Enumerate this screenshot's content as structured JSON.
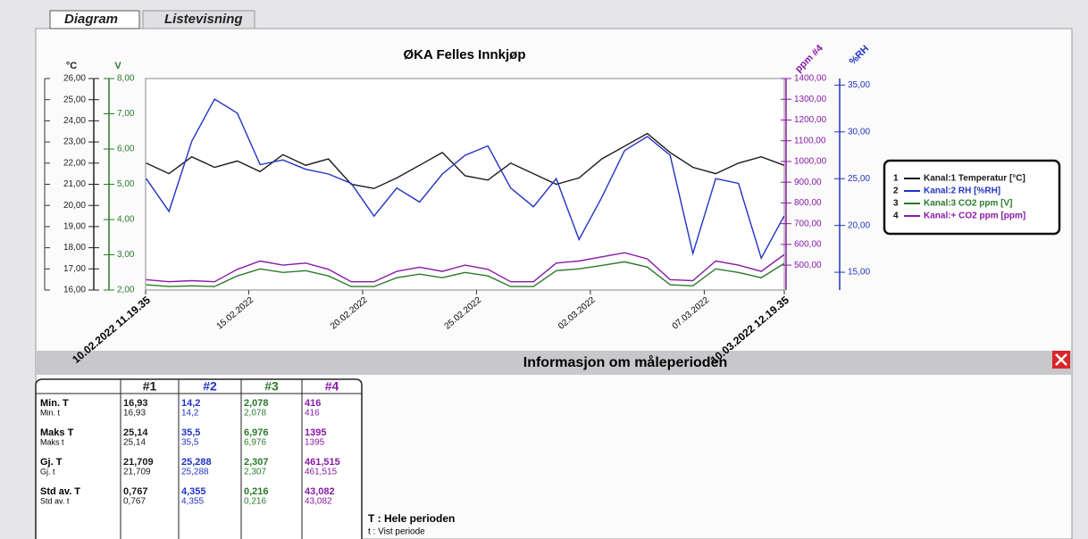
{
  "tabs": [
    "Diagram",
    "Listevisning"
  ],
  "chart_data": {
    "type": "line",
    "title": "ØKA Felles Innkjøp",
    "ylabel": "°C",
    "y2label": "V",
    "y3label": "ppm #4",
    "y4label": "%RH",
    "x": [
      "2022-02-10T12:00",
      "2022-02-11T12:00",
      "2022-02-12T12:00",
      "2022-02-13T12:00",
      "2022-02-14T12:00",
      "2022-02-15T12:00",
      "2022-02-16T12:00",
      "2022-02-17T12:00",
      "2022-02-18T12:00",
      "2022-02-19T12:00",
      "2022-02-20T12:00",
      "2022-02-21T12:00",
      "2022-02-22T12:00",
      "2022-02-23T12:00",
      "2022-02-24T12:00",
      "2022-02-25T12:00",
      "2022-02-26T12:00",
      "2022-02-27T12:00",
      "2022-02-28T12:00",
      "2022-03-01T12:00",
      "2022-03-02T12:00",
      "2022-03-03T12:00",
      "2022-03-04T12:00",
      "2022-03-05T12:00",
      "2022-03-06T12:00",
      "2022-03-07T12:00",
      "2022-03-08T12:00",
      "2022-03-09T12:00",
      "2022-03-10T12:00"
    ],
    "xlim": [
      "2022-02-10T11:19:35",
      "2022-03-10T12:19:35"
    ],
    "xticks": [
      {
        "value": "2022-02-10T11:19:35",
        "label": "10.02.2022 11.19.35"
      },
      {
        "value": "2022-02-15",
        "label": "15.02.2022"
      },
      {
        "value": "2022-02-20",
        "label": "20.02.2022"
      },
      {
        "value": "2022-02-25",
        "label": "25.02.2022"
      },
      {
        "value": "2022-03-02",
        "label": "02.03.2022"
      },
      {
        "value": "2022-03-07",
        "label": "07.03.2022"
      },
      {
        "value": "2022-03-10T12:19:35",
        "label": "10.03.2022 12.19.35"
      }
    ],
    "ylim": [
      16,
      26
    ],
    "yticks": [
      {
        "value": 16,
        "label": "16,00"
      },
      {
        "value": 17,
        "label": "17,00"
      },
      {
        "value": 18,
        "label": "18,00"
      },
      {
        "value": 19,
        "label": "19,00"
      },
      {
        "value": 20,
        "label": "20,00"
      },
      {
        "value": 21,
        "label": "21,00"
      },
      {
        "value": 22,
        "label": "22,00"
      },
      {
        "value": 23,
        "label": "23,00"
      },
      {
        "value": 24,
        "label": "24,00"
      },
      {
        "value": 25,
        "label": "25,00"
      },
      {
        "value": 26,
        "label": "26,00"
      }
    ],
    "y2lim": [
      2,
      8
    ],
    "y2ticks": [
      {
        "value": 2,
        "label": "2,00"
      },
      {
        "value": 3,
        "label": "3,00"
      },
      {
        "value": 4,
        "label": "4,00"
      },
      {
        "value": 5,
        "label": "5,00"
      },
      {
        "value": 6,
        "label": "6,00"
      },
      {
        "value": 7,
        "label": "7,00"
      },
      {
        "value": 8,
        "label": "8,00"
      }
    ],
    "y3lim": [
      380,
      1400
    ],
    "y3ticks": [
      {
        "value": 500,
        "label": "500,00"
      },
      {
        "value": 600,
        "label": "600,00"
      },
      {
        "value": 700,
        "label": "700,00"
      },
      {
        "value": 800,
        "label": "800,00"
      },
      {
        "value": 900,
        "label": "900,00"
      },
      {
        "value": 1000,
        "label": "1000,00"
      },
      {
        "value": 1100,
        "label": "1100,00"
      },
      {
        "value": 1200,
        "label": "1200,00"
      },
      {
        "value": 1300,
        "label": "1300,00"
      },
      {
        "value": 1400,
        "label": "1400,00"
      }
    ],
    "y4lim": [
      13.1,
      35.7
    ],
    "y4ticks": [
      {
        "value": 15,
        "label": "15,00"
      },
      {
        "value": 20,
        "label": "20,00"
      },
      {
        "value": 25,
        "label": "25,00"
      },
      {
        "value": 30,
        "label": "30,00"
      },
      {
        "value": 35,
        "label": "35,00"
      }
    ],
    "series": [
      {
        "id": "1",
        "name": "Kanal:1 Temperatur [°C]",
        "color": "#1a1a1a",
        "values": [
          22.0,
          21.5,
          22.3,
          21.8,
          22.1,
          21.6,
          22.4,
          21.9,
          22.2,
          21.0,
          20.8,
          21.3,
          21.9,
          22.5,
          21.4,
          21.2,
          22.0,
          21.5,
          21.0,
          21.3,
          22.2,
          22.8,
          23.4,
          22.5,
          21.8,
          21.5,
          22.0,
          22.3,
          21.9
        ]
      },
      {
        "id": "2",
        "name": "Kanal:2 RH [%RH]",
        "color": "#2233c4",
        "axis": "y4",
        "values": [
          25,
          21.5,
          29,
          33.5,
          32,
          26.5,
          27,
          26,
          25.5,
          24.5,
          21,
          24,
          22.5,
          25.5,
          27.5,
          28.5,
          24,
          22,
          25,
          18.5,
          23,
          28,
          29.5,
          27.5,
          17,
          25,
          24.5,
          16.5,
          21
        ]
      },
      {
        "id": "3",
        "name": "Kanal:3 CO2 ppm [V]",
        "color": "#2a7a2a",
        "axis": "y2",
        "values": [
          2.15,
          2.1,
          2.12,
          2.1,
          2.4,
          2.6,
          2.5,
          2.55,
          2.4,
          2.1,
          2.1,
          2.35,
          2.45,
          2.35,
          2.5,
          2.4,
          2.1,
          2.1,
          2.55,
          2.6,
          2.7,
          2.8,
          2.65,
          2.15,
          2.12,
          2.6,
          2.5,
          2.35,
          2.75
        ]
      },
      {
        "id": "4",
        "name": "Kanal:+ CO2 ppm [ppm]",
        "color": "#8a1aa8",
        "axis": "y3",
        "values": [
          430,
          420,
          425,
          420,
          480,
          520,
          500,
          510,
          480,
          420,
          420,
          470,
          490,
          470,
          500,
          480,
          420,
          420,
          510,
          520,
          540,
          560,
          530,
          430,
          425,
          520,
          500,
          470,
          550
        ]
      }
    ]
  },
  "info_panel": {
    "title": "Informasjon om måleperioden",
    "columns": [
      "#1",
      "#2",
      "#3",
      "#4"
    ],
    "rows": [
      {
        "label_T": "Min. T",
        "label_t": "Min. t",
        "T": [
          "16,93",
          "14,2",
          "2,078",
          "416"
        ],
        "t": [
          "16,93",
          "14,2",
          "2,078",
          "416"
        ]
      },
      {
        "label_T": "Maks T",
        "label_t": "Maks t",
        "T": [
          "25,14",
          "35,5",
          "6,976",
          "1395"
        ],
        "t": [
          "25,14",
          "35,5",
          "6,976",
          "1395"
        ]
      },
      {
        "label_T": "Gj. T",
        "label_t": "Gj. t",
        "T": [
          "21,709",
          "25,288",
          "2,307",
          "461,515"
        ],
        "t": [
          "21,709",
          "25,288",
          "2,307",
          "461,515"
        ]
      },
      {
        "label_T": "Std av. T",
        "label_t": "Std av. t",
        "T": [
          "0,767",
          "4,355",
          "0,216",
          "43,082"
        ],
        "t": [
          "0,767",
          "4,355",
          "0,216",
          "43,082"
        ]
      }
    ],
    "notes": [
      "T : Hele perioden",
      "t : Vist periode"
    ]
  }
}
